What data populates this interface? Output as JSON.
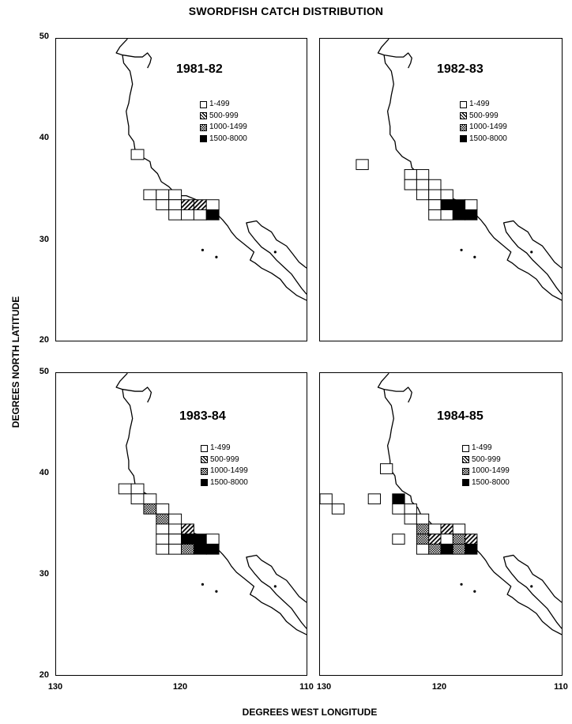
{
  "figure": {
    "title": "SWORDFISH CATCH DISTRIBUTION",
    "xlabel": "DEGREES WEST LONGITUDE",
    "ylabel": "DEGREES NORTH LATITUDE",
    "x_ticks": [
      "130",
      "120",
      "110"
    ],
    "y_ticks": [
      "50",
      "40",
      "30",
      "20"
    ],
    "x_range_deg_west": [
      130,
      110
    ],
    "y_range_deg_north": [
      20,
      50
    ]
  },
  "legend": {
    "items": [
      {
        "label": "1-499",
        "pattern": "open"
      },
      {
        "label": "500-999",
        "pattern": "hatched"
      },
      {
        "label": "1000-1499",
        "pattern": "checkered"
      },
      {
        "label": "1500-8000",
        "pattern": "solid"
      }
    ]
  },
  "panels": [
    {
      "season": "1981-82",
      "cells": [
        {
          "lon": 123,
          "lat": 38,
          "cls": 0
        },
        {
          "lon": 122,
          "lat": 34,
          "cls": 0
        },
        {
          "lon": 121,
          "lat": 34,
          "cls": 0
        },
        {
          "lon": 120,
          "lat": 34,
          "cls": 0
        },
        {
          "lon": 121,
          "lat": 33,
          "cls": 0
        },
        {
          "lon": 120,
          "lat": 33,
          "cls": 0
        },
        {
          "lon": 119,
          "lat": 33,
          "cls": 1
        },
        {
          "lon": 118,
          "lat": 33,
          "cls": 1
        },
        {
          "lon": 117,
          "lat": 33,
          "cls": 0
        },
        {
          "lon": 120,
          "lat": 32,
          "cls": 0
        },
        {
          "lon": 119,
          "lat": 32,
          "cls": 0
        },
        {
          "lon": 118,
          "lat": 32,
          "cls": 0
        },
        {
          "lon": 117,
          "lat": 32,
          "cls": 3
        }
      ]
    },
    {
      "season": "1982-83",
      "cells": [
        {
          "lon": 126,
          "lat": 37,
          "cls": 0
        },
        {
          "lon": 122,
          "lat": 36,
          "cls": 0
        },
        {
          "lon": 121,
          "lat": 36,
          "cls": 0
        },
        {
          "lon": 122,
          "lat": 35,
          "cls": 0
        },
        {
          "lon": 121,
          "lat": 35,
          "cls": 0
        },
        {
          "lon": 120,
          "lat": 35,
          "cls": 0
        },
        {
          "lon": 121,
          "lat": 34,
          "cls": 0
        },
        {
          "lon": 120,
          "lat": 34,
          "cls": 0
        },
        {
          "lon": 119,
          "lat": 34,
          "cls": 0
        },
        {
          "lon": 120,
          "lat": 33,
          "cls": 0
        },
        {
          "lon": 119,
          "lat": 33,
          "cls": 3
        },
        {
          "lon": 118,
          "lat": 33,
          "cls": 3
        },
        {
          "lon": 117,
          "lat": 33,
          "cls": 0
        },
        {
          "lon": 120,
          "lat": 32,
          "cls": 0
        },
        {
          "lon": 119,
          "lat": 32,
          "cls": 0
        },
        {
          "lon": 118,
          "lat": 32,
          "cls": 3
        },
        {
          "lon": 117,
          "lat": 32,
          "cls": 3
        }
      ]
    },
    {
      "season": "1983-84",
      "cells": [
        {
          "lon": 124,
          "lat": 38,
          "cls": 0
        },
        {
          "lon": 123,
          "lat": 38,
          "cls": 0
        },
        {
          "lon": 123,
          "lat": 37,
          "cls": 0
        },
        {
          "lon": 122,
          "lat": 37,
          "cls": 0
        },
        {
          "lon": 122,
          "lat": 36,
          "cls": 2
        },
        {
          "lon": 121,
          "lat": 36,
          "cls": 0
        },
        {
          "lon": 121,
          "lat": 35,
          "cls": 2
        },
        {
          "lon": 120,
          "lat": 35,
          "cls": 0
        },
        {
          "lon": 121,
          "lat": 34,
          "cls": 0
        },
        {
          "lon": 120,
          "lat": 34,
          "cls": 0
        },
        {
          "lon": 119,
          "lat": 34,
          "cls": 1
        },
        {
          "lon": 121,
          "lat": 33,
          "cls": 0
        },
        {
          "lon": 120,
          "lat": 33,
          "cls": 0
        },
        {
          "lon": 119,
          "lat": 33,
          "cls": 3
        },
        {
          "lon": 118,
          "lat": 33,
          "cls": 3
        },
        {
          "lon": 117,
          "lat": 33,
          "cls": 0
        },
        {
          "lon": 121,
          "lat": 32,
          "cls": 0
        },
        {
          "lon": 120,
          "lat": 32,
          "cls": 0
        },
        {
          "lon": 119,
          "lat": 32,
          "cls": 2
        },
        {
          "lon": 118,
          "lat": 32,
          "cls": 3
        },
        {
          "lon": 117,
          "lat": 32,
          "cls": 3
        }
      ]
    },
    {
      "season": "1984-85",
      "cells": [
        {
          "lon": 124,
          "lat": 40,
          "cls": 0
        },
        {
          "lon": 129,
          "lat": 37,
          "cls": 0
        },
        {
          "lon": 125,
          "lat": 37,
          "cls": 0
        },
        {
          "lon": 123,
          "lat": 37,
          "cls": 3
        },
        {
          "lon": 128,
          "lat": 36,
          "cls": 0
        },
        {
          "lon": 123,
          "lat": 36,
          "cls": 0
        },
        {
          "lon": 122,
          "lat": 36,
          "cls": 0
        },
        {
          "lon": 122,
          "lat": 35,
          "cls": 0
        },
        {
          "lon": 121,
          "lat": 35,
          "cls": 0
        },
        {
          "lon": 121,
          "lat": 34,
          "cls": 2
        },
        {
          "lon": 120,
          "lat": 34,
          "cls": 0
        },
        {
          "lon": 119,
          "lat": 34,
          "cls": 1
        },
        {
          "lon": 118,
          "lat": 34,
          "cls": 0
        },
        {
          "lon": 123,
          "lat": 33,
          "cls": 0
        },
        {
          "lon": 121,
          "lat": 33,
          "cls": 2
        },
        {
          "lon": 120,
          "lat": 33,
          "cls": 1
        },
        {
          "lon": 119,
          "lat": 33,
          "cls": 0
        },
        {
          "lon": 118,
          "lat": 33,
          "cls": 2
        },
        {
          "lon": 117,
          "lat": 33,
          "cls": 1
        },
        {
          "lon": 121,
          "lat": 32,
          "cls": 0
        },
        {
          "lon": 120,
          "lat": 32,
          "cls": 2
        },
        {
          "lon": 119,
          "lat": 32,
          "cls": 3
        },
        {
          "lon": 118,
          "lat": 32,
          "cls": 2
        },
        {
          "lon": 117,
          "lat": 32,
          "cls": 3
        }
      ]
    }
  ]
}
